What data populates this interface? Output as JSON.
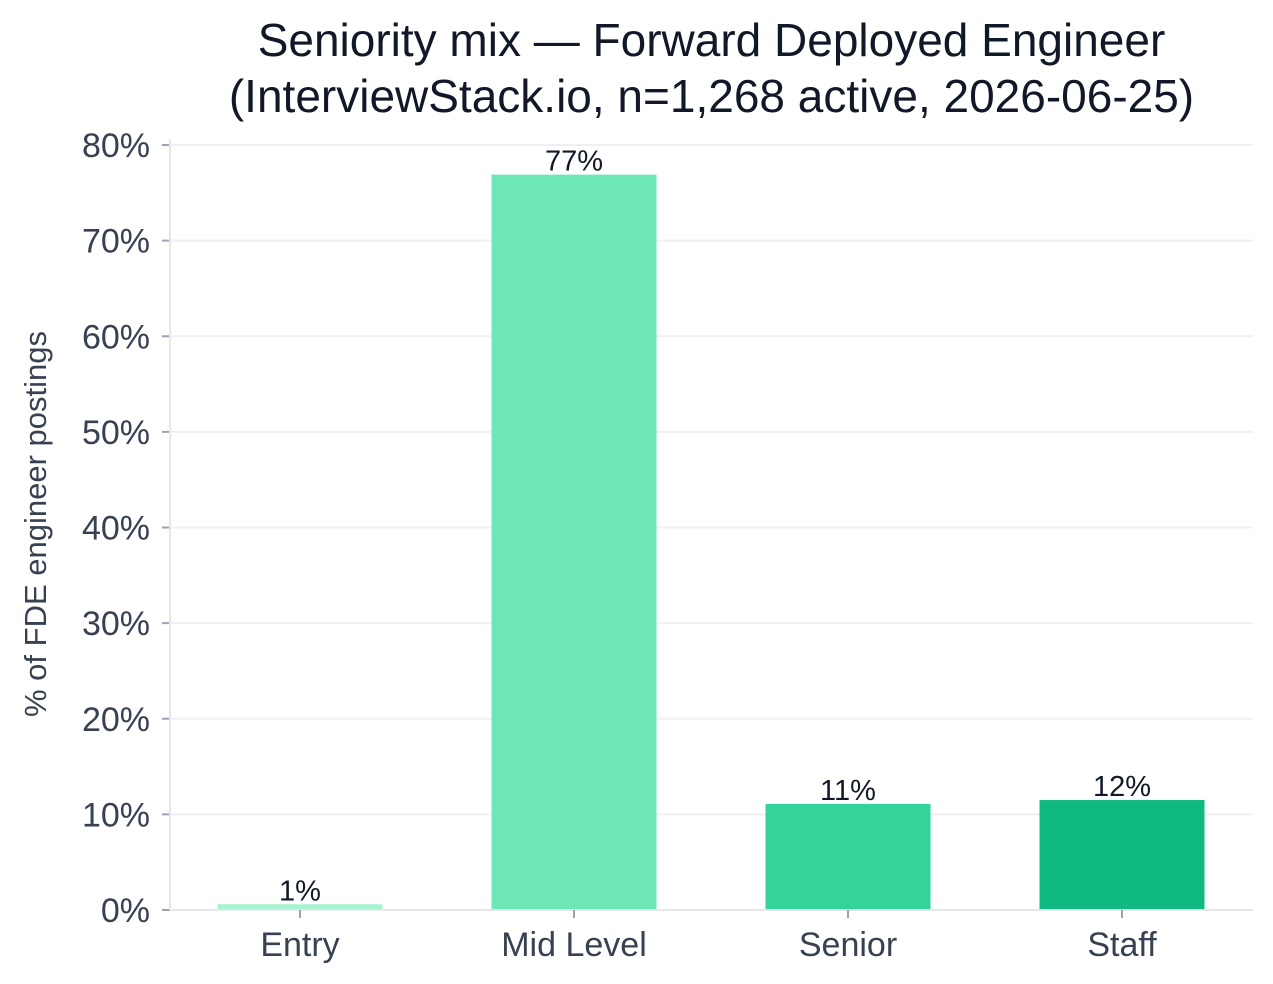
{
  "chart_data": {
    "type": "bar",
    "title_lines": [
      "Seniority mix — Forward Deployed Engineer",
      "(InterviewStack.io, n=1,268 active, 2026-06-25)"
    ],
    "xlabel": "",
    "ylabel": "% of FDE engineer postings",
    "categories": [
      "Entry",
      "Mid Level",
      "Senior",
      "Staff"
    ],
    "values": [
      0.6,
      76.9,
      11.1,
      11.5
    ],
    "data_labels": [
      "1%",
      "77%",
      "11%",
      "12%"
    ],
    "colors": [
      "#a7f3d0",
      "#6ee7b7",
      "#34d399",
      "#10b981"
    ],
    "ylim": [
      0,
      80
    ],
    "yticks": [
      0,
      10,
      20,
      30,
      40,
      50,
      60,
      70,
      80
    ],
    "ytick_labels": [
      "0%",
      "10%",
      "20%",
      "30%",
      "40%",
      "50%",
      "60%",
      "70%",
      "80%"
    ],
    "grid": true,
    "legend": "none"
  }
}
